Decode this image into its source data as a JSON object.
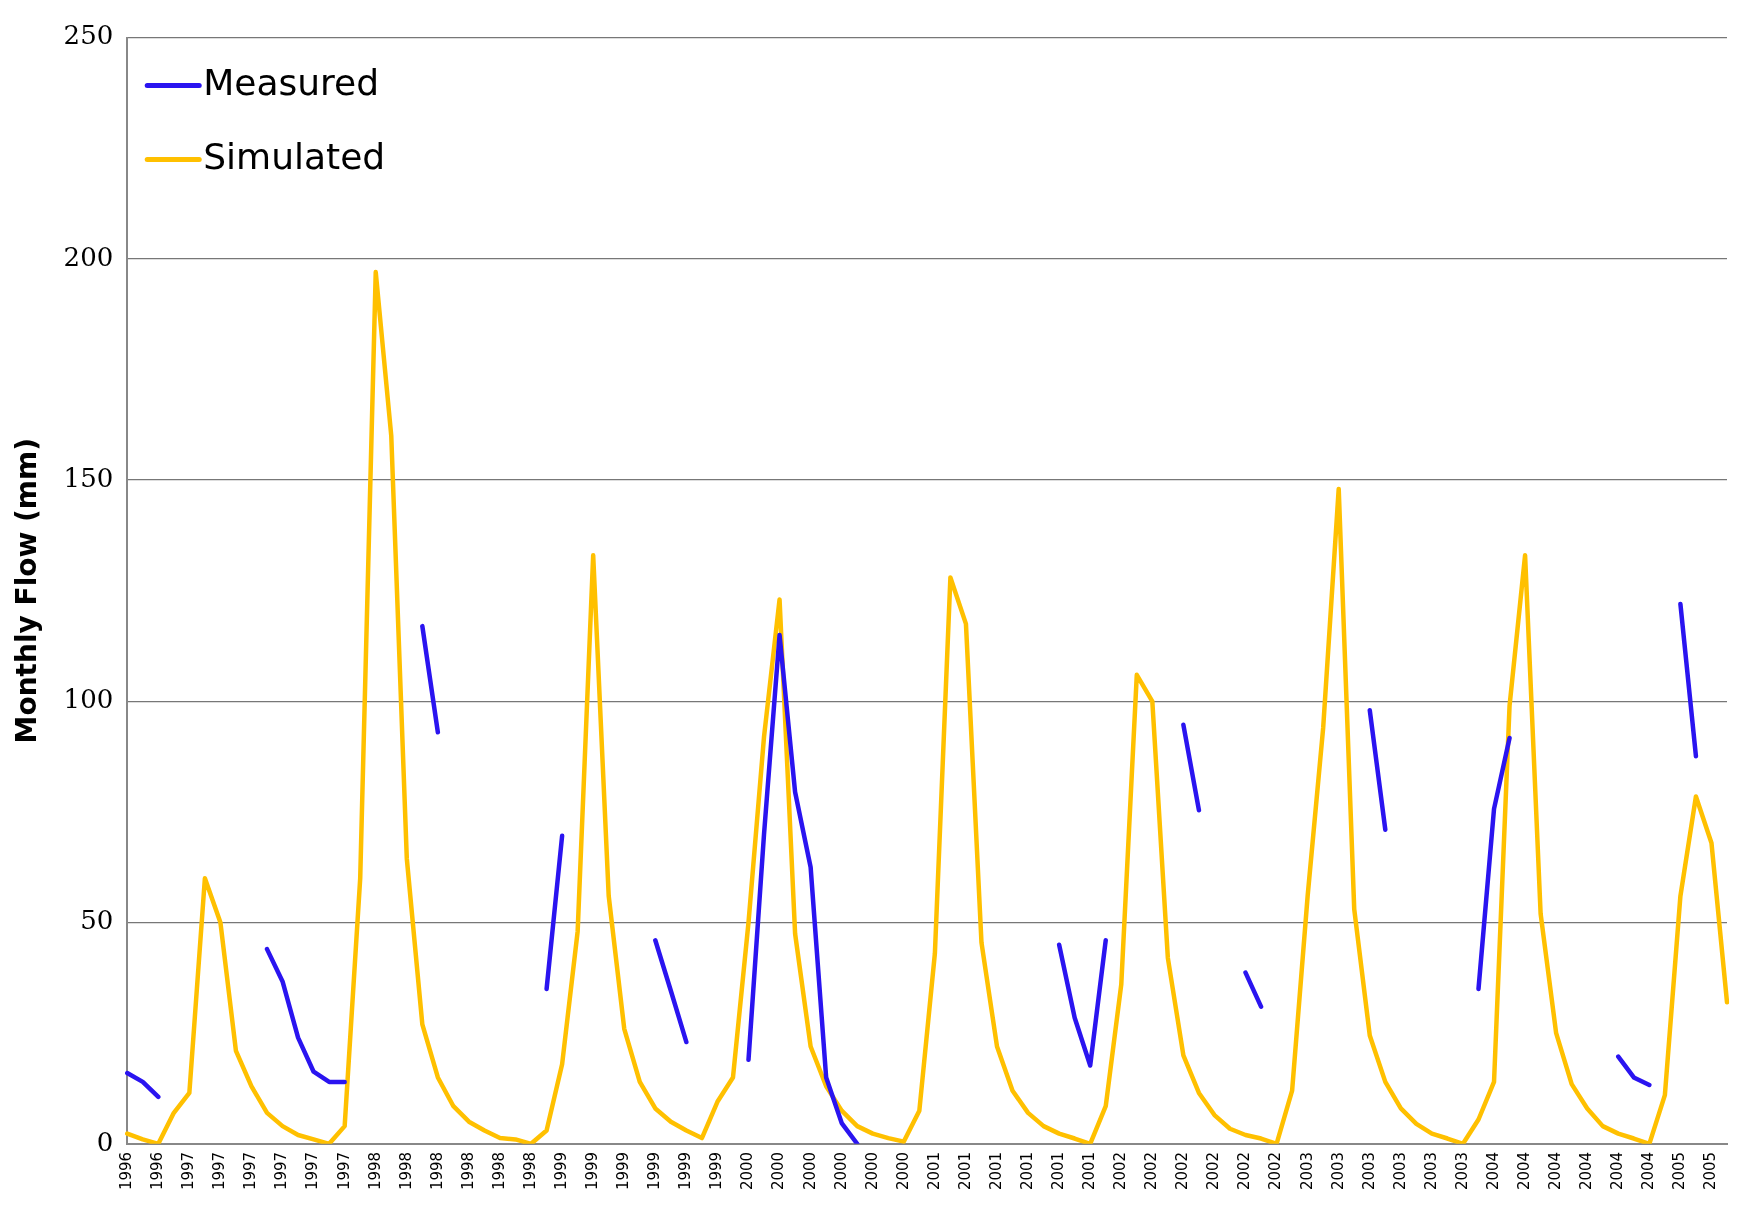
{
  "chart_data": {
    "type": "line",
    "ylabel": "Monthly Flow (mm)",
    "categories": [
      "1996",
      null,
      "1996",
      null,
      "1997",
      null,
      "1997",
      null,
      "1997",
      null,
      "1997",
      null,
      "1997",
      null,
      "1997",
      null,
      "1998",
      null,
      "1998",
      null,
      "1998",
      null,
      "1998",
      null,
      "1998",
      null,
      "1998",
      null,
      "1999",
      null,
      "1999",
      null,
      "1999",
      null,
      "1999",
      null,
      "1999",
      null,
      "1999",
      null,
      "2000",
      null,
      "2000",
      null,
      "2000",
      null,
      "2000",
      null,
      "2000",
      null,
      "2000",
      null,
      "2001",
      null,
      "2001",
      null,
      "2001",
      null,
      "2001",
      null,
      "2001",
      null,
      "2001",
      null,
      "2002",
      null,
      "2002",
      null,
      "2002",
      null,
      "2002",
      null,
      "2002",
      null,
      "2002",
      null,
      "2003",
      null,
      "2003",
      null,
      "2003",
      null,
      "2003",
      null,
      "2003",
      null,
      "2003",
      null,
      "2004",
      null,
      "2004",
      null,
      "2004",
      null,
      "2004",
      null,
      "2004",
      null,
      "2004",
      null,
      "2005",
      null,
      "2005",
      null
    ],
    "series": [
      {
        "name": "Measured",
        "color": "#2a14f0",
        "values": [
          16,
          14,
          10.6,
          null,
          null,
          null,
          null,
          null,
          null,
          44,
          36.7,
          24,
          16.3,
          14,
          14,
          null,
          null,
          null,
          null,
          117,
          93,
          null,
          null,
          null,
          null,
          null,
          null,
          35,
          69.6,
          null,
          null,
          null,
          null,
          null,
          46,
          34.6,
          23,
          null,
          null,
          null,
          19,
          70,
          115,
          79.5,
          62.5,
          15,
          4.7,
          0,
          null,
          null,
          null,
          null,
          null,
          null,
          null,
          null,
          null,
          null,
          null,
          null,
          45,
          28.5,
          17.7,
          46,
          null,
          null,
          null,
          null,
          94.7,
          75.4,
          null,
          null,
          38.7,
          31,
          null,
          null,
          null,
          null,
          null,
          null,
          98,
          71,
          null,
          null,
          null,
          null,
          null,
          35,
          75.7,
          91.7,
          null,
          null,
          null,
          null,
          null,
          null,
          19.7,
          15,
          13.3,
          null,
          122,
          87.6,
          null,
          null
        ]
      },
      {
        "name": "Simulated",
        "color": "#ffc000",
        "values": [
          2.3,
          1,
          0,
          7,
          11.5,
          60,
          50,
          21,
          13,
          7,
          4,
          2,
          1,
          0,
          4,
          60,
          197,
          160,
          64.5,
          27,
          15,
          8.5,
          5,
          3,
          1.3,
          1,
          0,
          3,
          18,
          48,
          133,
          56,
          26,
          14,
          8,
          5,
          3,
          1.3,
          9.5,
          15,
          50,
          92,
          123,
          47.5,
          22,
          13,
          7.5,
          4,
          2.3,
          1.3,
          0.5,
          7.5,
          43,
          128,
          117.5,
          45.5,
          22,
          12,
          7,
          4,
          2.3,
          1.2,
          0,
          8.5,
          36,
          106,
          100,
          42,
          20,
          11.5,
          6.5,
          3.4,
          2,
          1.2,
          0,
          12,
          56,
          94,
          148,
          53,
          24.5,
          14,
          8,
          4.5,
          2.3,
          1.2,
          0,
          5.5,
          14,
          99,
          133,
          52,
          25,
          13.5,
          8,
          4,
          2.3,
          1.2,
          0,
          11,
          56,
          78.5,
          68,
          32
        ]
      }
    ],
    "ylim": [
      0,
      250
    ],
    "yticks": [
      0,
      50,
      100,
      150,
      200,
      250
    ],
    "grid": "y",
    "legend": "top left",
    "marker": "none",
    "line_style": "solid"
  }
}
